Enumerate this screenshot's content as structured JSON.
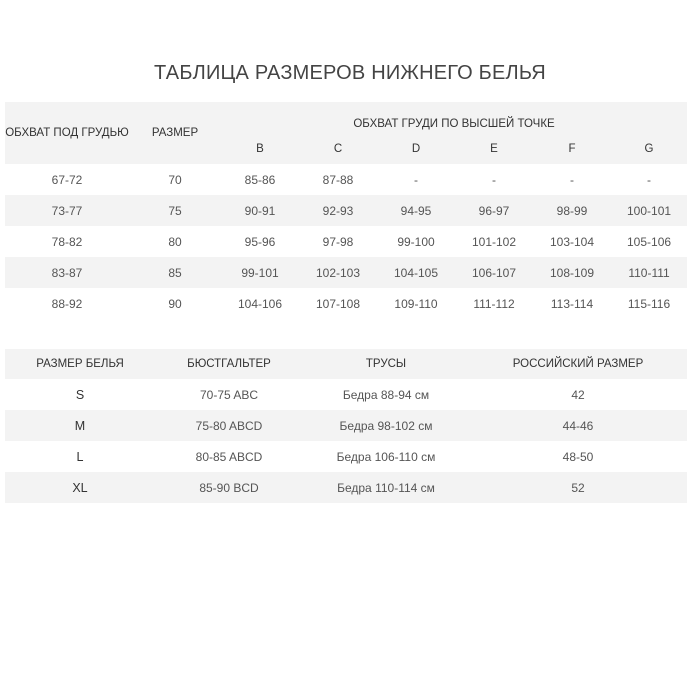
{
  "title": "ТАБЛИЦА РАЗМЕРОВ НИЖНЕГО БЕЛЬЯ",
  "table1": {
    "col_underbust": "ОБХВАТ ПОД ГРУДЬЮ",
    "col_size": "РАЗМЕР",
    "group_label": "ОБХВАТ ГРУДИ ПО ВЫСШЕЙ ТОЧКЕ",
    "cups": [
      "B",
      "C",
      "D",
      "E",
      "F",
      "G"
    ],
    "rows": [
      [
        "67-72",
        "70",
        "85-86",
        "87-88",
        "-",
        "-",
        "-",
        "-"
      ],
      [
        "73-77",
        "75",
        "90-91",
        "92-93",
        "94-95",
        "96-97",
        "98-99",
        "100-101"
      ],
      [
        "78-82",
        "80",
        "95-96",
        "97-98",
        "99-100",
        "101-102",
        "103-104",
        "105-106"
      ],
      [
        "83-87",
        "85",
        "99-101",
        "102-103",
        "104-105",
        "106-107",
        "108-109",
        "110-111"
      ],
      [
        "88-92",
        "90",
        "104-106",
        "107-108",
        "109-110",
        "111-112",
        "113-114",
        "115-116"
      ]
    ]
  },
  "table2": {
    "headers": [
      "РАЗМЕР БЕЛЬЯ",
      "БЮСТГАЛЬТЕР",
      "ТРУСЫ",
      "РОССИЙСКИЙ РАЗМЕР"
    ],
    "rows": [
      [
        "S",
        "70-75 ABC",
        "Бедра 88-94 см",
        "42"
      ],
      [
        "M",
        "75-80 ABCD",
        "Бедра 98-102 см",
        "44-46"
      ],
      [
        "L",
        "80-85 ABCD",
        "Бедра 106-110 см",
        "48-50"
      ],
      [
        "XL",
        "85-90 BCD",
        "Бедра 110-114 см",
        "52"
      ]
    ]
  }
}
